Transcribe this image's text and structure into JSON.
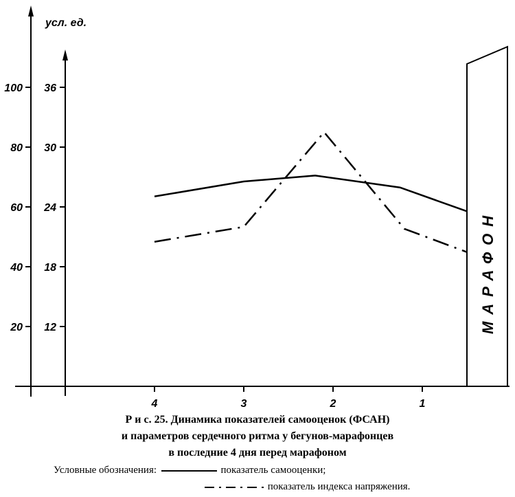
{
  "chart_data": {
    "type": "line",
    "unit_label": "усл. ед.",
    "categories": [
      "4",
      "3",
      "2",
      "1"
    ],
    "y_axis_outer": {
      "ticks": [
        20,
        40,
        60,
        80,
        100
      ],
      "ylim": [
        0,
        100
      ]
    },
    "y_axis_inner": {
      "ticks": [
        12,
        18,
        24,
        30,
        36
      ],
      "ylim": [
        6,
        36
      ]
    },
    "series": [
      {
        "name": "показатель самооценки",
        "style": "solid",
        "axis": "outer",
        "x": [
          4,
          3,
          2.2,
          1.25,
          0.45
        ],
        "values": [
          63.5,
          68.5,
          70.5,
          66.5,
          58
        ]
      },
      {
        "name": "показатель индекса напряжения",
        "style": "dash-dot",
        "axis": "inner",
        "x": [
          4,
          3,
          2.1,
          1.2,
          0.45
        ],
        "values": [
          20.5,
          22,
          31.5,
          21.8,
          19.3
        ]
      }
    ],
    "annotation": "МАРАФОН",
    "grid": false
  },
  "caption": {
    "line1": "Р и с.  25.  Динамика показателей самооценок (ФСАН)",
    "line2": "и параметров сердечного ритма у бегунов-марафонцев",
    "line3": "в последние 4 дня перед марафоном"
  },
  "legend": {
    "prefix": "Условные обозначения:",
    "solid_label": "показатель самооценки;",
    "dashdot_label": "показатель индекса напряжения."
  }
}
